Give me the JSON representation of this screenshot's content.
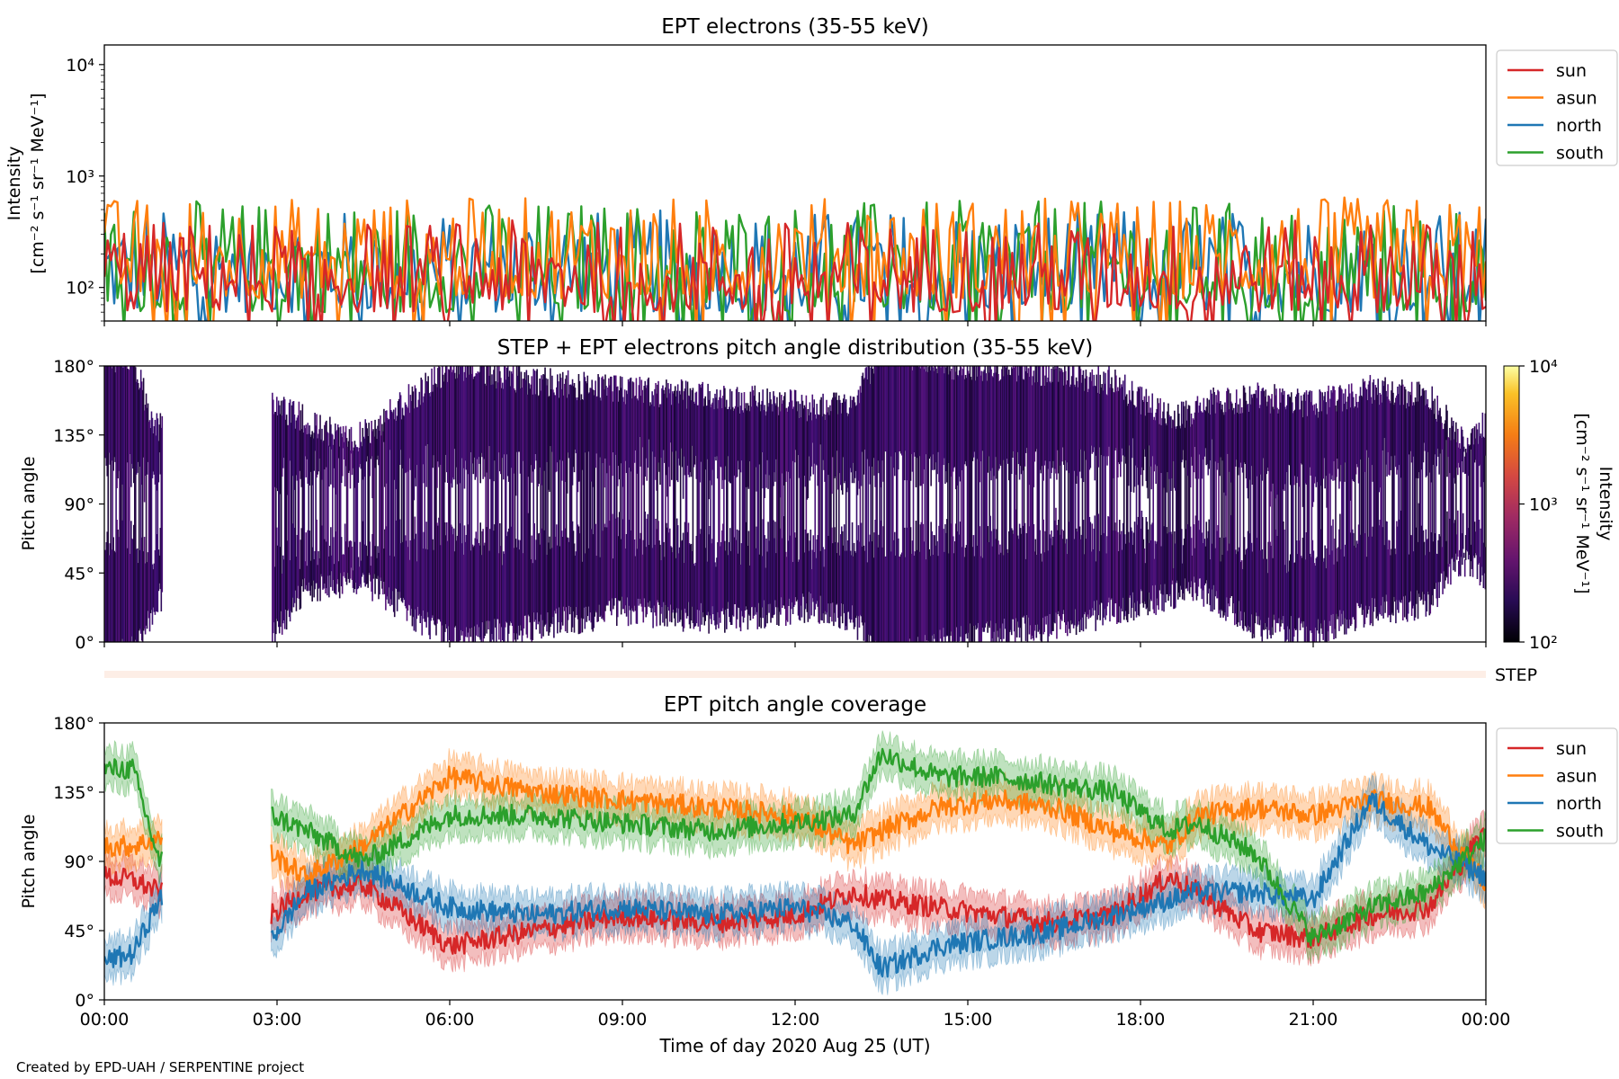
{
  "footer": "Created by EPD-UAH / SERPENTINE project",
  "colors": {
    "sun": "#d62728",
    "asun": "#ff7f0e",
    "north": "#1f77b4",
    "south": "#2ca02c"
  },
  "chart_data": [
    {
      "type": "line",
      "title": "EPT electrons (35-55 keV)",
      "ylabel_line1": "Intensity",
      "ylabel_line2": "[cm⁻² s⁻¹ sr⁻¹ MeV⁻¹]",
      "yscale": "log",
      "ylim": [
        50,
        15000
      ],
      "yticks": [
        100,
        1000,
        10000
      ],
      "ytick_labels": [
        "10²",
        "10³",
        "10⁴"
      ],
      "x_range_hours": [
        0,
        24
      ],
      "legend_position": "outside-right",
      "series": [
        {
          "name": "sun",
          "typical_range": [
            60,
            400
          ]
        },
        {
          "name": "asun",
          "typical_range": [
            80,
            650
          ]
        },
        {
          "name": "north",
          "typical_range": [
            60,
            500
          ]
        },
        {
          "name": "south",
          "typical_range": [
            60,
            600
          ]
        }
      ],
      "grid": false
    },
    {
      "type": "heatmap",
      "title": "STEP + EPT electrons pitch angle distribution (35-55 keV)",
      "ylabel": "Pitch angle",
      "ylim": [
        0,
        180
      ],
      "yticks": [
        "0°",
        "45°",
        "90°",
        "135°",
        "180°"
      ],
      "colorbar": {
        "label_line1": "Intensity",
        "label_line2": "[cm⁻² s⁻¹ sr⁻¹ MeV⁻¹]",
        "scale": "log",
        "range": [
          100,
          10000
        ],
        "tick_labels": [
          "10²",
          "10³",
          "10⁴"
        ]
      },
      "step_label": "STEP",
      "data_gap_hours": [
        1.0,
        2.9
      ],
      "grid": false
    },
    {
      "type": "line",
      "title": "EPT pitch angle coverage",
      "ylabel": "Pitch angle",
      "xlabel": "Time of day 2020 Aug 25 (UT)",
      "ylim": [
        0,
        180
      ],
      "yticks": [
        "0°",
        "45°",
        "90°",
        "135°",
        "180°"
      ],
      "xticks": [
        "00:00",
        "03:00",
        "06:00",
        "09:00",
        "12:00",
        "15:00",
        "18:00",
        "21:00",
        "00:00"
      ],
      "legend_position": "outside-right",
      "data_gap_hours": [
        1.0,
        2.9
      ],
      "series": [
        {
          "name": "sun",
          "x": [
            0,
            0.5,
            0.95,
            2.9,
            3.5,
            4.5,
            6,
            7.5,
            9,
            10.5,
            12,
            13,
            13.5,
            14.5,
            15.5,
            16.5,
            17.5,
            18.5,
            19,
            20,
            21,
            22,
            23,
            24
          ],
          "y": [
            80,
            78,
            70,
            55,
            70,
            75,
            35,
            45,
            55,
            50,
            55,
            70,
            65,
            60,
            55,
            50,
            55,
            80,
            70,
            45,
            40,
            55,
            60,
            110
          ]
        },
        {
          "name": "asun",
          "x": [
            0,
            0.5,
            0.95,
            2.9,
            3.5,
            4.5,
            6,
            7.5,
            9,
            10.5,
            12,
            13,
            13.5,
            14.5,
            15.5,
            16.5,
            17.5,
            18.5,
            19,
            20,
            21,
            22,
            23,
            24
          ],
          "y": [
            100,
            100,
            105,
            95,
            80,
            100,
            145,
            135,
            130,
            125,
            120,
            100,
            110,
            125,
            130,
            125,
            110,
            100,
            120,
            125,
            120,
            130,
            125,
            75
          ]
        },
        {
          "name": "north",
          "x": [
            0,
            0.5,
            0.95,
            2.9,
            3.5,
            4.5,
            6,
            7.5,
            9,
            10.5,
            12,
            13,
            13.5,
            14.5,
            15.5,
            16.5,
            17.5,
            18.5,
            19,
            20,
            21,
            22,
            23,
            24
          ],
          "y": [
            25,
            30,
            65,
            40,
            70,
            85,
            60,
            55,
            60,
            55,
            60,
            50,
            20,
            35,
            40,
            45,
            55,
            65,
            70,
            70,
            65,
            130,
            100,
            80
          ]
        },
        {
          "name": "south",
          "x": [
            0,
            0.5,
            0.95,
            2.9,
            3.5,
            4.5,
            6,
            7.5,
            9,
            10.5,
            12,
            13,
            13.5,
            14.5,
            15.5,
            16.5,
            17.5,
            18.5,
            19,
            20,
            21,
            22,
            23,
            24
          ],
          "y": [
            150,
            150,
            90,
            120,
            110,
            90,
            120,
            120,
            115,
            110,
            115,
            120,
            160,
            145,
            145,
            140,
            135,
            110,
            115,
            95,
            40,
            60,
            70,
            105
          ]
        }
      ],
      "band_halfwidth_deg": 12,
      "grid": false
    }
  ]
}
